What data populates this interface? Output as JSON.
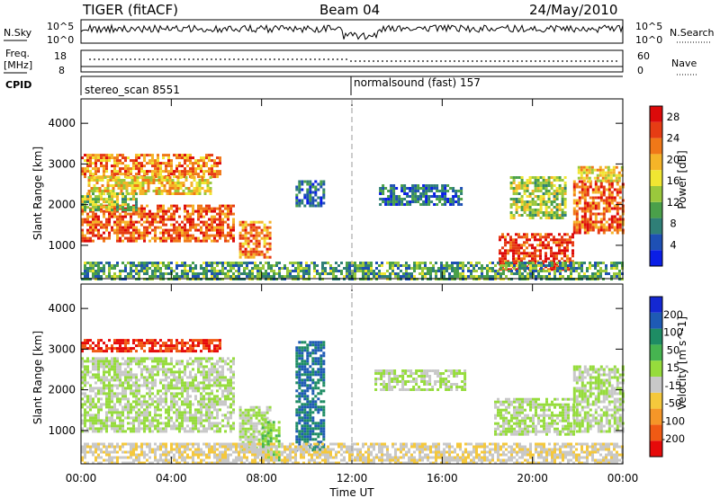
{
  "header": {
    "left_title": "TIGER (fitACF)",
    "center_title": "Beam 04",
    "date": "24/May/2010"
  },
  "top_panels": {
    "nsky_label": "N.Sky",
    "nsky_ticks_left": [
      "10^5",
      "10^0"
    ],
    "nsky_ticks_right": [
      "10^5",
      "10^0"
    ],
    "nsearch_label": "N.Search",
    "freq_label": "Freq.",
    "freq_unit": "[MHz]",
    "freq_ticks": [
      "18",
      "8"
    ],
    "nave_ticks": [
      "60",
      "0"
    ],
    "nave_label": "Nave",
    "cpid_label": "CPID",
    "cpid_modes": [
      {
        "label": "stereo_scan 8551",
        "start_ut": 0
      },
      {
        "label": "normalsound (fast) 157",
        "start_ut": 12
      }
    ]
  },
  "colors": {
    "power": [
      "#0a1ee6",
      "#1e50b4",
      "#2f7f77",
      "#4aa04a",
      "#9ac83c",
      "#f0e632",
      "#f5b428",
      "#f07818",
      "#e63c14",
      "#dc0a0a"
    ],
    "velocity": [
      "#e60a0a",
      "#f05a14",
      "#f59628",
      "#f5c83c",
      "#c8c8c8",
      "#96dc3c",
      "#46b450",
      "#1e8c64",
      "#1e5ab4",
      "#1428d2"
    ],
    "grey": "#c8c8c8"
  },
  "chart_data": [
    {
      "type": "heatmap",
      "name": "power",
      "ylabel": "Slant Range [km]",
      "xlabel": "Time UT",
      "xlim": [
        0,
        24
      ],
      "ylim": [
        180,
        4600
      ],
      "x_ticks": [
        "00:00",
        "04:00",
        "08:00",
        "12:00",
        "16:00",
        "20:00",
        "00:00"
      ],
      "y_ticks": [
        1000,
        2000,
        3000,
        4000
      ],
      "colorbar": {
        "label": "Power [dB]",
        "ticks": [
          4,
          8,
          12,
          16,
          20,
          24,
          28
        ],
        "range": [
          0,
          30
        ]
      },
      "regions": [
        {
          "t": [
            0,
            6.2
          ],
          "r": [
            2700,
            3250
          ],
          "v": 22
        },
        {
          "t": [
            0.3,
            5.8
          ],
          "r": [
            2300,
            2700
          ],
          "v": 18
        },
        {
          "t": [
            0,
            6.8
          ],
          "r": [
            1100,
            2000
          ],
          "v": 24
        },
        {
          "t": [
            0,
            2.5
          ],
          "r": [
            1900,
            2300
          ],
          "v": 14
        },
        {
          "t": [
            7,
            8.4
          ],
          "r": [
            700,
            1600
          ],
          "v": 22
        },
        {
          "t": [
            9.5,
            10.8
          ],
          "r": [
            2000,
            2600
          ],
          "v": 6
        },
        {
          "t": [
            13.2,
            16.8
          ],
          "r": [
            2000,
            2500
          ],
          "v": 6
        },
        {
          "t": [
            18.5,
            21.8
          ],
          "r": [
            400,
            1300
          ],
          "v": 26
        },
        {
          "t": [
            19,
            21.5
          ],
          "r": [
            1700,
            2700
          ],
          "v": 14
        },
        {
          "t": [
            21.8,
            24
          ],
          "r": [
            1300,
            2600
          ],
          "v": 24
        },
        {
          "t": [
            22,
            24
          ],
          "r": [
            2600,
            2950
          ],
          "v": 18
        },
        {
          "t": [
            0,
            24
          ],
          "r": [
            200,
            600
          ],
          "v": 10
        }
      ]
    },
    {
      "type": "heatmap",
      "name": "velocity",
      "ylabel": "Slant Range [km]",
      "xlabel": "Time UT",
      "xlim": [
        0,
        24
      ],
      "ylim": [
        180,
        4600
      ],
      "x_ticks": [
        "00:00",
        "04:00",
        "08:00",
        "12:00",
        "16:00",
        "20:00",
        "00:00"
      ],
      "y_ticks": [
        1000,
        2000,
        3000,
        4000
      ],
      "colorbar": {
        "label": "Velocity [m s^-1]",
        "ticks": [
          -200,
          -100,
          -50,
          -15,
          15,
          50,
          100,
          200
        ],
        "range": [
          -250,
          250
        ]
      },
      "regions": [
        {
          "t": [
            0,
            6.2
          ],
          "r": [
            2950,
            3250
          ],
          "v": -200
        },
        {
          "t": [
            0,
            6.8
          ],
          "r": [
            1000,
            2800
          ],
          "v": 0
        },
        {
          "t": [
            7,
            8.4
          ],
          "r": [
            500,
            1600
          ],
          "v": 0
        },
        {
          "t": [
            8,
            8.8
          ],
          "r": [
            300,
            1300
          ],
          "v": 40
        },
        {
          "t": [
            9.5,
            10.8
          ],
          "r": [
            500,
            3200
          ],
          "v": 150
        },
        {
          "t": [
            13,
            17
          ],
          "r": [
            2000,
            2500
          ],
          "v": 0
        },
        {
          "t": [
            18.3,
            21.8
          ],
          "r": [
            900,
            1800
          ],
          "v": 0
        },
        {
          "t": [
            21.8,
            24
          ],
          "r": [
            1000,
            2600
          ],
          "v": 0
        },
        {
          "t": [
            0,
            24
          ],
          "r": [
            200,
            700
          ],
          "v": -40
        }
      ]
    }
  ]
}
